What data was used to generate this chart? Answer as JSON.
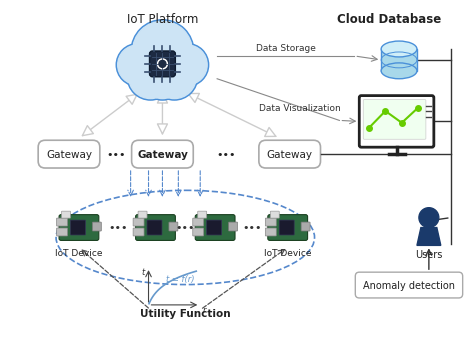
{
  "bg_color": "#ffffff",
  "title_iot": "IoT Platform",
  "title_cloud": "Cloud Database",
  "gateway_label": "Gateway",
  "iot_device_label": "IoT Device",
  "utility_label": "Utility Function",
  "utility_eq": "t = f(r)",
  "data_storage_label": "Data Storage",
  "data_viz_label": "Data Visualization",
  "users_label": "Users",
  "anomaly_label": "Anomaly detection",
  "dots3": "•••",
  "cloud_color": "#4a90d9",
  "cloud_fill": "#cde4f5",
  "arrow_gray": "#aaaaaa",
  "gateway_edge": "#aaaaaa",
  "ellipse_color": "#5588cc",
  "user_color": "#1a3a6b",
  "green_color": "#66cc00",
  "db_fill": "#a8d8ea",
  "db_edge": "#4a90d9",
  "chip_color": "#1c2a42",
  "line_color": "#888888",
  "dashed_arrow_color": "#555555"
}
